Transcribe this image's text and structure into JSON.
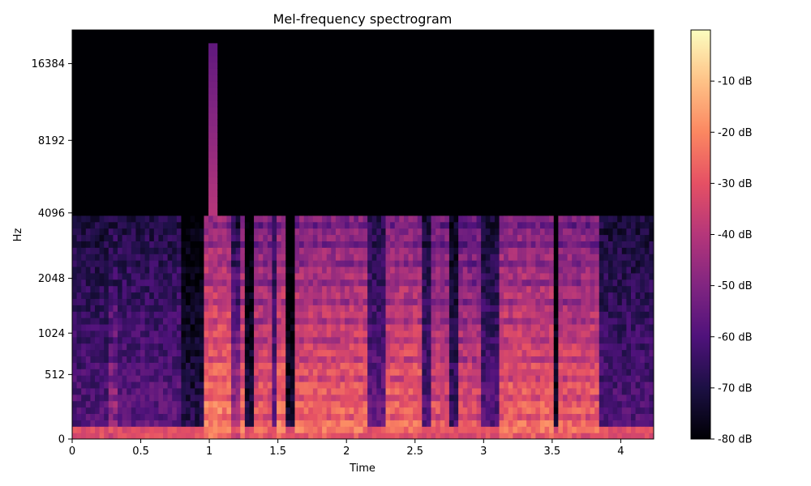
{
  "chart_data": {
    "type": "heatmap",
    "title": "Mel-frequency spectrogram",
    "xlabel": "Time",
    "ylabel": "Hz",
    "x_scale": "linear",
    "y_scale": "mel",
    "xlim": [
      0,
      4.24
    ],
    "ylim": [
      0,
      22050
    ],
    "x_ticks": [
      {
        "value": 0,
        "label": "0"
      },
      {
        "value": 0.5,
        "label": "0.5"
      },
      {
        "value": 1,
        "label": "1"
      },
      {
        "value": 1.5,
        "label": "1.5"
      },
      {
        "value": 2,
        "label": "2"
      },
      {
        "value": 2.5,
        "label": "2.5"
      },
      {
        "value": 3,
        "label": "3"
      },
      {
        "value": 3.5,
        "label": "3.5"
      },
      {
        "value": 4,
        "label": "4"
      }
    ],
    "y_ticks": [
      {
        "value": 0,
        "label": "0"
      },
      {
        "value": 512,
        "label": "512"
      },
      {
        "value": 1024,
        "label": "1024"
      },
      {
        "value": 2048,
        "label": "2048"
      },
      {
        "value": 4096,
        "label": "4096"
      },
      {
        "value": 8192,
        "label": "8192"
      },
      {
        "value": 16384,
        "label": "16384"
      }
    ],
    "colorbar": {
      "colormap": "magma",
      "range": [
        -80,
        0
      ],
      "ticks": [
        {
          "value": -10,
          "label": "-10 dB"
        },
        {
          "value": -20,
          "label": "-20 dB"
        },
        {
          "value": -30,
          "label": "-30 dB"
        },
        {
          "value": -40,
          "label": "-40 dB"
        },
        {
          "value": -50,
          "label": "-50 dB"
        },
        {
          "value": -60,
          "label": "-60 dB"
        },
        {
          "value": -70,
          "label": "-70 dB"
        },
        {
          "value": -80,
          "label": "-80 dB"
        }
      ]
    },
    "energy_cutoff_hz": 4096,
    "energy_regions": [
      {
        "t_start": 0.0,
        "t_end": 0.27,
        "level_db": -58
      },
      {
        "t_start": 0.27,
        "t_end": 0.32,
        "level_db": -42
      },
      {
        "t_start": 0.32,
        "t_end": 0.8,
        "level_db": -56
      },
      {
        "t_start": 0.8,
        "t_end": 0.95,
        "level_db": -68
      },
      {
        "t_start": 0.95,
        "t_end": 1.15,
        "level_db": -18
      },
      {
        "t_start": 1.15,
        "t_end": 1.22,
        "level_db": -40
      },
      {
        "t_start": 1.22,
        "t_end": 1.27,
        "level_db": -22
      },
      {
        "t_start": 1.27,
        "t_end": 1.32,
        "level_db": -70
      },
      {
        "t_start": 1.32,
        "t_end": 1.45,
        "level_db": -24
      },
      {
        "t_start": 1.45,
        "t_end": 1.5,
        "level_db": -55
      },
      {
        "t_start": 1.5,
        "t_end": 1.57,
        "level_db": -20
      },
      {
        "t_start": 1.57,
        "t_end": 1.63,
        "level_db": -72
      },
      {
        "t_start": 1.63,
        "t_end": 2.15,
        "level_db": -22
      },
      {
        "t_start": 2.15,
        "t_end": 2.3,
        "level_db": -55
      },
      {
        "t_start": 2.3,
        "t_end": 2.55,
        "level_db": -22
      },
      {
        "t_start": 2.55,
        "t_end": 2.62,
        "level_db": -58
      },
      {
        "t_start": 2.62,
        "t_end": 2.75,
        "level_db": -26
      },
      {
        "t_start": 2.75,
        "t_end": 2.83,
        "level_db": -62
      },
      {
        "t_start": 2.83,
        "t_end": 2.98,
        "level_db": -28
      },
      {
        "t_start": 2.98,
        "t_end": 3.1,
        "level_db": -58
      },
      {
        "t_start": 3.1,
        "t_end": 3.5,
        "level_db": -22
      },
      {
        "t_start": 3.5,
        "t_end": 3.55,
        "level_db": -72
      },
      {
        "t_start": 3.55,
        "t_end": 3.85,
        "level_db": -24
      },
      {
        "t_start": 3.85,
        "t_end": 4.24,
        "level_db": -58
      }
    ],
    "transient": {
      "t": 1.04,
      "level_db": -40,
      "top_hz": 20000
    }
  }
}
